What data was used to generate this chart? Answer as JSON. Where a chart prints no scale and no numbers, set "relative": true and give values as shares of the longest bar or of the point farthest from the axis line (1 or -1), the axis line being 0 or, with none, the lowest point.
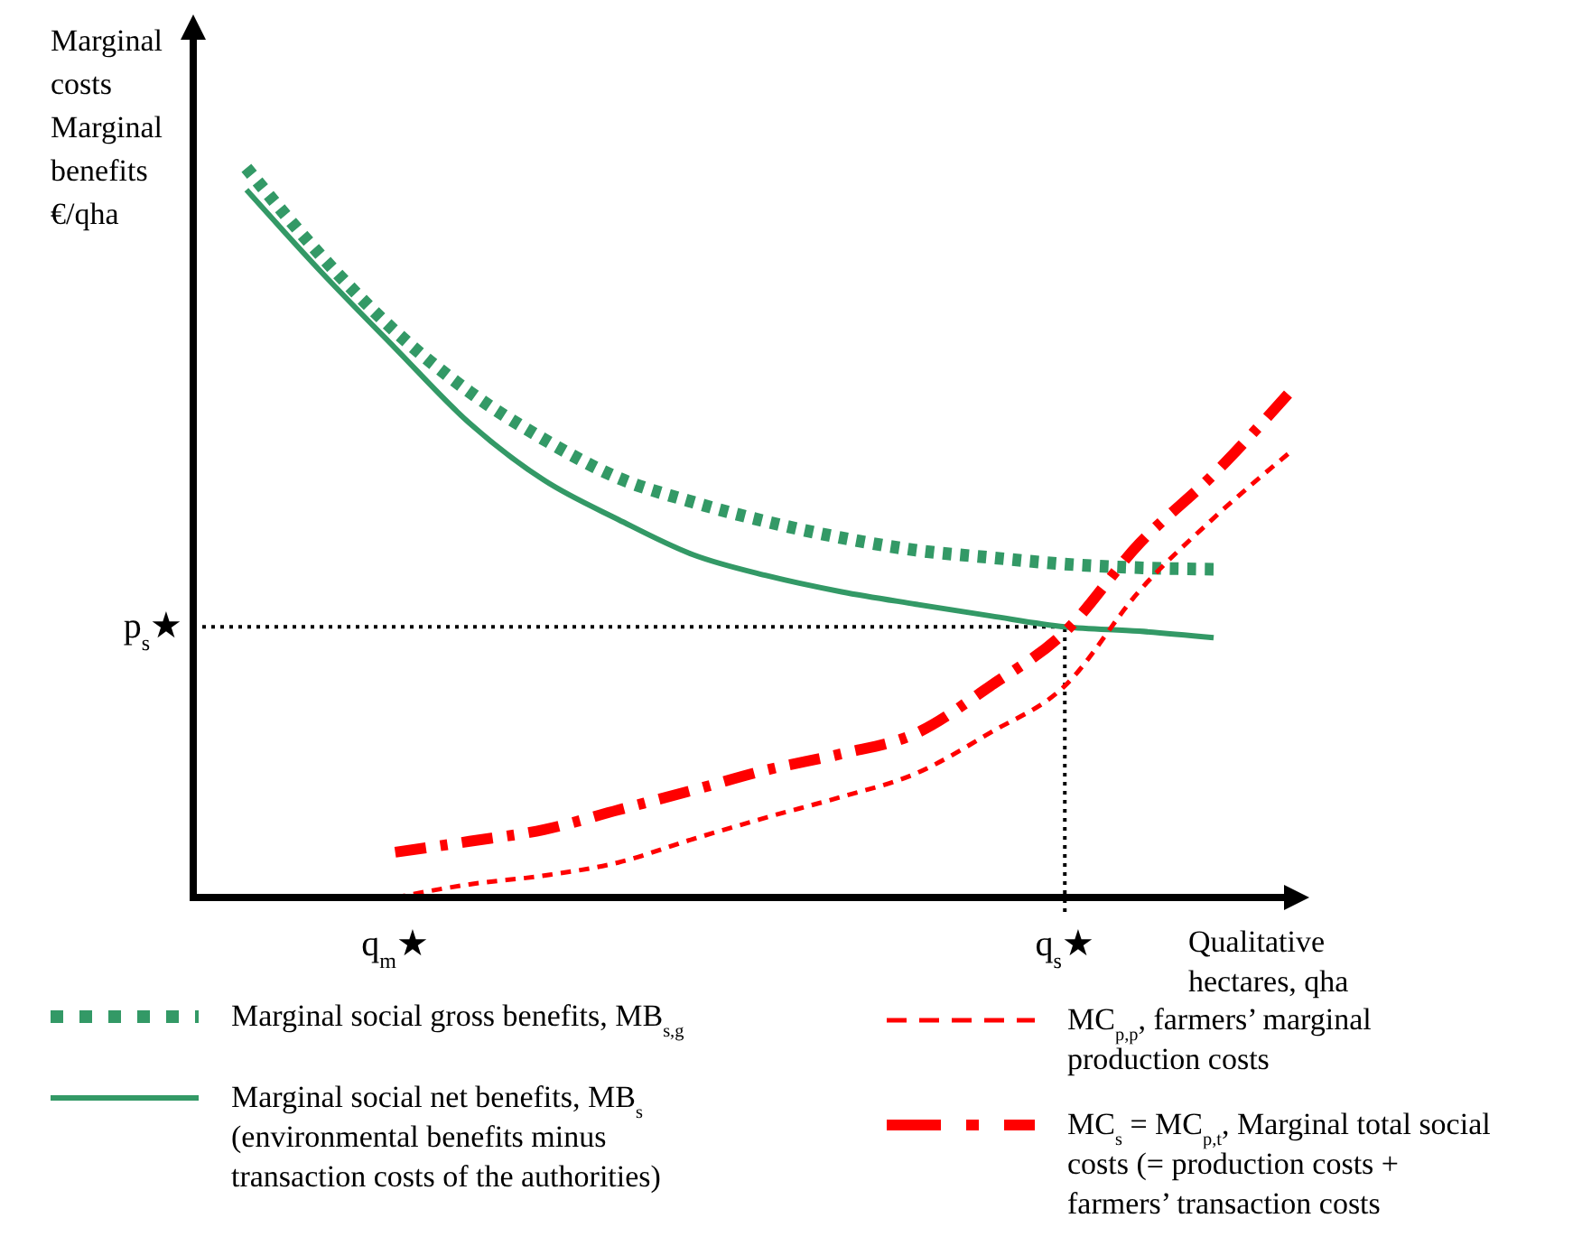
{
  "chart_data": {
    "type": "line",
    "relative": true,
    "ylabel": "Marginal costs Marginal benefits €/qha",
    "xlabel": "Qualitative hectares, qha",
    "legend": "bottom",
    "grid": false,
    "categories": [
      null,
      null,
      "q$_{m}$★",
      null,
      null,
      null,
      null,
      null,
      null,
      null,
      null,
      "q$_{s}$★",
      null,
      null,
      null
    ],
    "ref_lines": [
      {
        "axis": "y",
        "value": 0.371,
        "label": "p$_{s}$★",
        "color": "#000000",
        "line_style": "dotted"
      },
      {
        "axis": "x",
        "value": "q$_{s}$★",
        "label": null,
        "color": "#000000",
        "line_style": "dotted"
      }
    ],
    "series": [
      {
        "name": "Marginal social gross benefits, MB$_{s,g}$",
        "color": "#339966",
        "line_style": "dotted",
        "values": [
          1.0,
          0.88,
          0.776,
          0.693,
          0.628,
          0.575,
          0.542,
          0.515,
          0.493,
          0.476,
          0.466,
          0.457,
          0.452,
          0.45,
          null
        ]
      },
      {
        "name": "Marginal social net benefits, MB$_{s}$ (environmental benefits minus transaction costs of the authorities)",
        "color": "#339966",
        "line_style": "solid",
        "values": [
          0.97,
          0.858,
          0.753,
          0.65,
          0.572,
          0.518,
          0.47,
          0.441,
          0.419,
          0.402,
          0.386,
          0.371,
          0.365,
          0.356,
          null
        ]
      },
      {
        "name": "MC$_{p,p}$, farmers’ marginal production costs",
        "color": "#ff0000",
        "line_style": "dashed",
        "values": [
          null,
          null,
          0,
          0.018,
          0.03,
          0.048,
          0.08,
          0.11,
          0.138,
          0.17,
          0.226,
          0.29,
          0.42,
          0.52,
          0.608
        ]
      },
      {
        "name": "MC$_{s}$ = MC$_{p,t}$, Marginal total social costs (= production costs +  farmers’ transaction costs",
        "color": "#ff0000",
        "line_style": "dashdot",
        "values": [
          null,
          null,
          0.062,
          0.077,
          0.093,
          0.12,
          0.147,
          0.175,
          0.197,
          0.225,
          0.29,
          0.364,
          0.485,
          0.58,
          0.69
        ]
      }
    ]
  }
}
